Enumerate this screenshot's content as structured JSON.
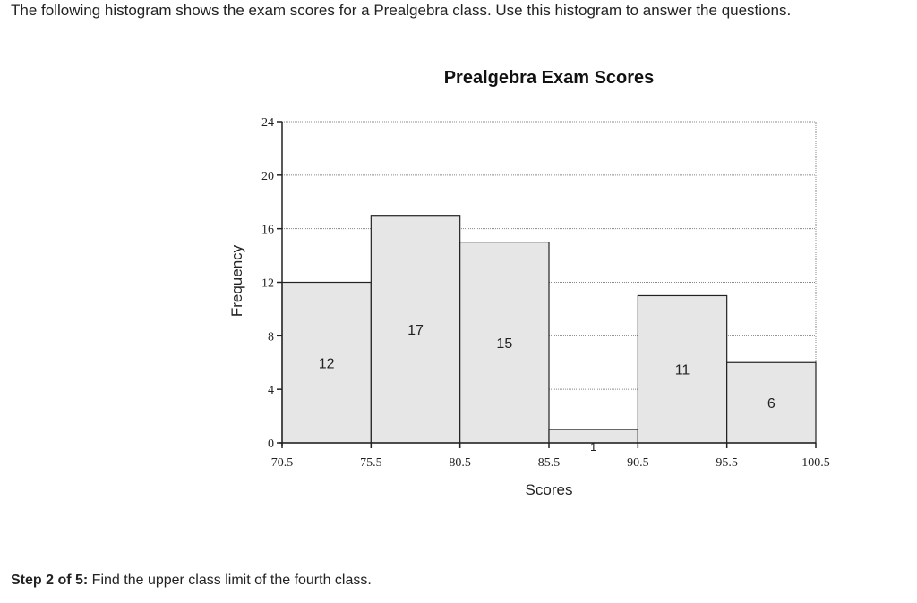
{
  "question": {
    "intro_text": "The following histogram shows the exam scores for a Prealgebra class. Use this histogram to answer the questions.",
    "step_label": "Step 2 of 5:",
    "step_text": " Find the upper class limit of the fourth class."
  },
  "chart_data": {
    "type": "bar",
    "title": "Prealgebra Exam Scores",
    "xlabel": "Scores",
    "ylabel": "Frequency",
    "class_boundaries": [
      70.5,
      75.5,
      80.5,
      85.5,
      90.5,
      95.5,
      100.5
    ],
    "x_tick_labels": [
      "70.5",
      "75.5",
      "80.5",
      "85.5",
      "90.5",
      "95.5",
      "100.5"
    ],
    "values": [
      12,
      17,
      15,
      1,
      11,
      6
    ],
    "data_labels": [
      "12",
      "17",
      "15",
      "1",
      "11",
      "6"
    ],
    "ylim": [
      0,
      24
    ],
    "y_ticks": [
      0,
      4,
      8,
      12,
      16,
      20,
      24
    ],
    "grid": true,
    "bar_fill": "#e6e6e6",
    "bar_stroke": "#222222",
    "grid_color": "#888888"
  }
}
